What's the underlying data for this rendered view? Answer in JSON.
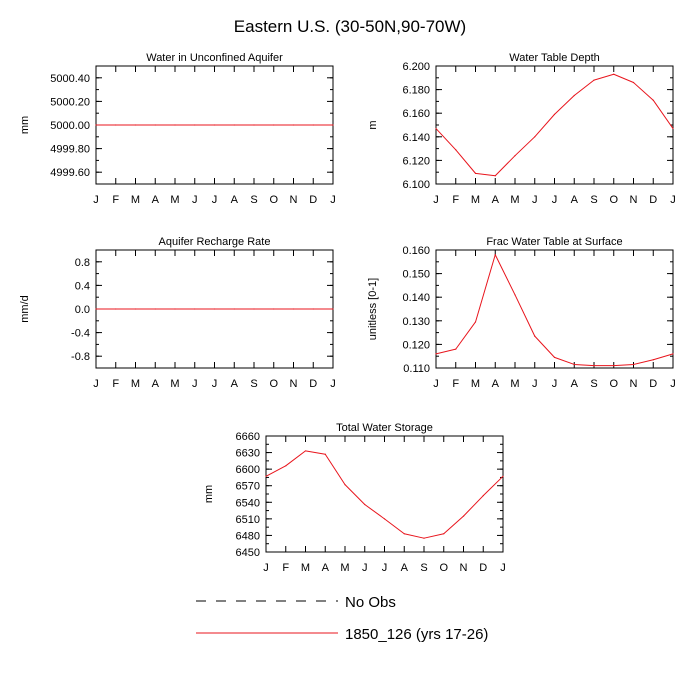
{
  "figure": {
    "title": "Eastern U.S. (30-50N,90-70W)"
  },
  "colors": {
    "model": "#e8141c",
    "obs": "#000000",
    "axes": "#000000"
  },
  "legend": {
    "obs_label": "No Obs",
    "model_label": "1850_126 (yrs 17-26)"
  },
  "chart_data": [
    {
      "type": "line",
      "title": "Water in Unconfined Aquifer",
      "ylabel": "mm",
      "xlabel": "",
      "x": [
        "J",
        "F",
        "M",
        "A",
        "M",
        "J",
        "J",
        "A",
        "S",
        "O",
        "N",
        "D",
        "J"
      ],
      "ylim": [
        4999.5,
        5000.5
      ],
      "yticks": [
        4999.6,
        4999.8,
        5000.0,
        5000.2,
        5000.4
      ],
      "ytick_labels": [
        "4999.60",
        "4999.80",
        "5000.00",
        "5000.20",
        "5000.40"
      ],
      "series": [
        {
          "name": "1850_126 (yrs 17-26)",
          "values": [
            5000,
            5000,
            5000,
            5000,
            5000,
            5000,
            5000,
            5000,
            5000,
            5000,
            5000,
            5000,
            5000
          ]
        }
      ]
    },
    {
      "type": "line",
      "title": "Water Table Depth",
      "ylabel": "m",
      "xlabel": "",
      "x": [
        "J",
        "F",
        "M",
        "A",
        "M",
        "J",
        "J",
        "A",
        "S",
        "O",
        "N",
        "D",
        "J"
      ],
      "ylim": [
        6.1,
        6.2
      ],
      "yticks": [
        6.1,
        6.12,
        6.14,
        6.16,
        6.18,
        6.2
      ],
      "ytick_labels": [
        "6.100",
        "6.120",
        "6.140",
        "6.160",
        "6.180",
        "6.200"
      ],
      "series": [
        {
          "name": "1850_126 (yrs 17-26)",
          "values": [
            6.147,
            6.129,
            6.109,
            6.107,
            6.124,
            6.14,
            6.159,
            6.175,
            6.188,
            6.193,
            6.186,
            6.171,
            6.147
          ]
        }
      ]
    },
    {
      "type": "line",
      "title": "Aquifer Recharge Rate",
      "ylabel": "mm/d",
      "xlabel": "",
      "x": [
        "J",
        "F",
        "M",
        "A",
        "M",
        "J",
        "J",
        "A",
        "S",
        "O",
        "N",
        "D",
        "J"
      ],
      "ylim": [
        -1.0,
        1.0
      ],
      "yticks": [
        -0.8,
        -0.4,
        0.0,
        0.4,
        0.8
      ],
      "ytick_labels": [
        "-0.8",
        "-0.4",
        "0.0",
        "0.4",
        "0.8"
      ],
      "series": [
        {
          "name": "1850_126 (yrs 17-26)",
          "values": [
            0,
            0,
            0,
            0,
            0,
            0,
            0,
            0,
            0,
            0,
            0,
            0,
            0
          ]
        }
      ]
    },
    {
      "type": "line",
      "title": "Frac Water Table at Surface",
      "ylabel": "unitless [0-1]",
      "xlabel": "",
      "x": [
        "J",
        "F",
        "M",
        "A",
        "M",
        "J",
        "J",
        "A",
        "S",
        "O",
        "N",
        "D",
        "J"
      ],
      "ylim": [
        0.11,
        0.16
      ],
      "yticks": [
        0.11,
        0.12,
        0.13,
        0.14,
        0.15,
        0.16
      ],
      "ytick_labels": [
        "0.110",
        "0.120",
        "0.130",
        "0.140",
        "0.150",
        "0.160"
      ],
      "series": [
        {
          "name": "1850_126 (yrs 17-26)",
          "values": [
            0.116,
            0.118,
            0.1295,
            0.158,
            0.141,
            0.1235,
            0.1145,
            0.1115,
            0.111,
            0.111,
            0.1115,
            0.1135,
            0.116
          ]
        }
      ]
    },
    {
      "type": "line",
      "title": "Total Water Storage",
      "ylabel": "mm",
      "xlabel": "",
      "x": [
        "J",
        "F",
        "M",
        "A",
        "M",
        "J",
        "J",
        "A",
        "S",
        "O",
        "N",
        "D",
        "J"
      ],
      "ylim": [
        6450,
        6660
      ],
      "yticks": [
        6450,
        6480,
        6510,
        6540,
        6570,
        6600,
        6630,
        6660
      ],
      "ytick_labels": [
        "6450",
        "6480",
        "6510",
        "6540",
        "6570",
        "6600",
        "6630",
        "6660"
      ],
      "series": [
        {
          "name": "1850_126 (yrs 17-26)",
          "values": [
            6587,
            6606,
            6633,
            6627,
            6572,
            6536,
            6510,
            6483,
            6475,
            6483,
            6515,
            6552,
            6587
          ]
        }
      ]
    }
  ]
}
